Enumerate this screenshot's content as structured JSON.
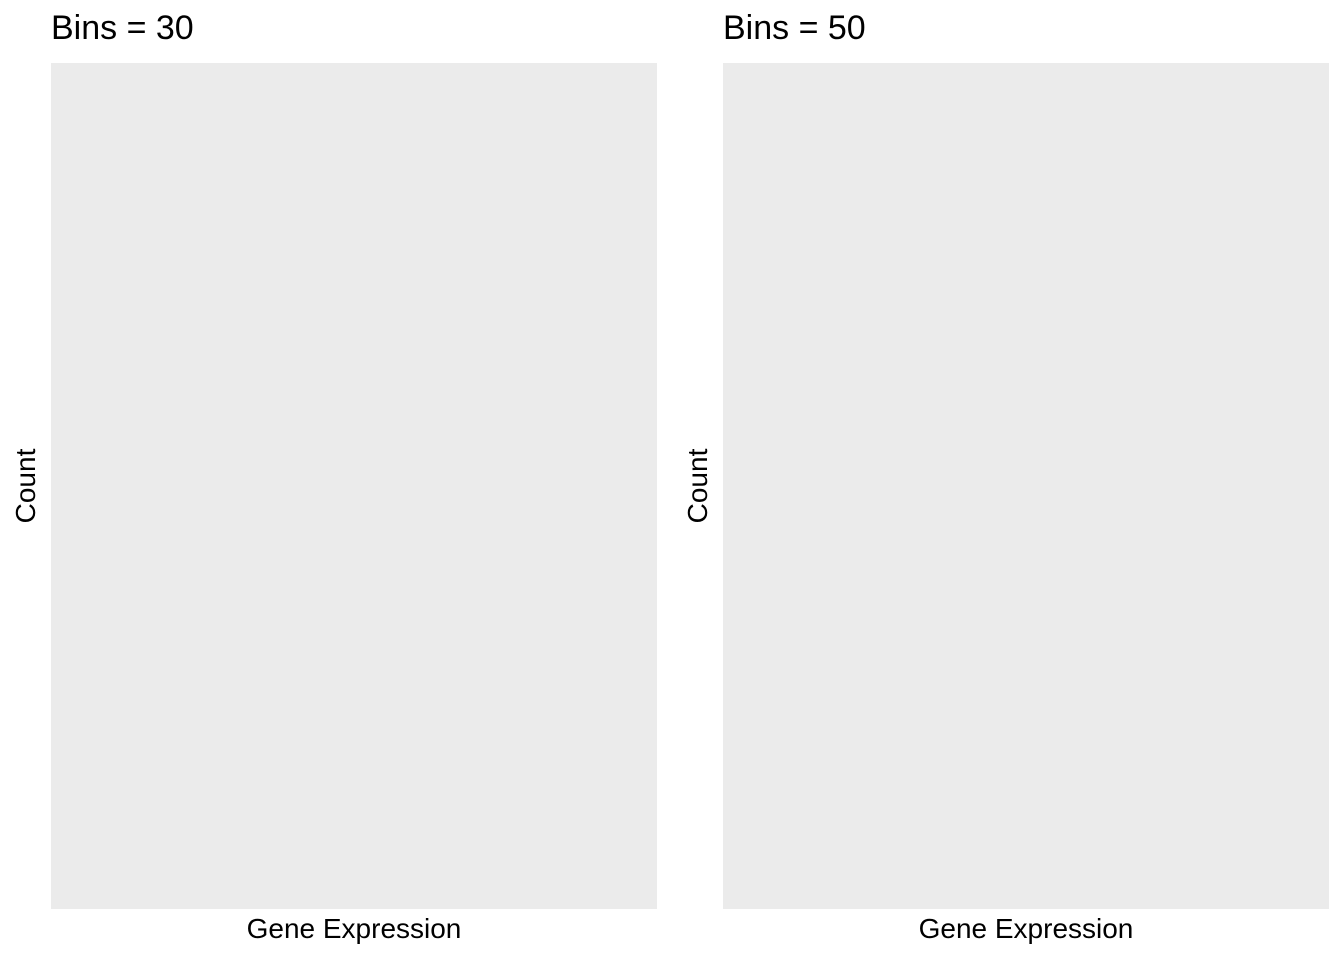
{
  "chart_data": [
    {
      "type": "bar",
      "title": "Bins = 30",
      "xlabel": "Gene Expression",
      "ylabel": "Count",
      "series": [],
      "grid": false,
      "plot_background": "#ebebeb"
    },
    {
      "type": "bar",
      "title": "Bins = 50",
      "xlabel": "Gene Expression",
      "ylabel": "Count",
      "series": [],
      "grid": false,
      "plot_background": "#ebebeb"
    }
  ]
}
